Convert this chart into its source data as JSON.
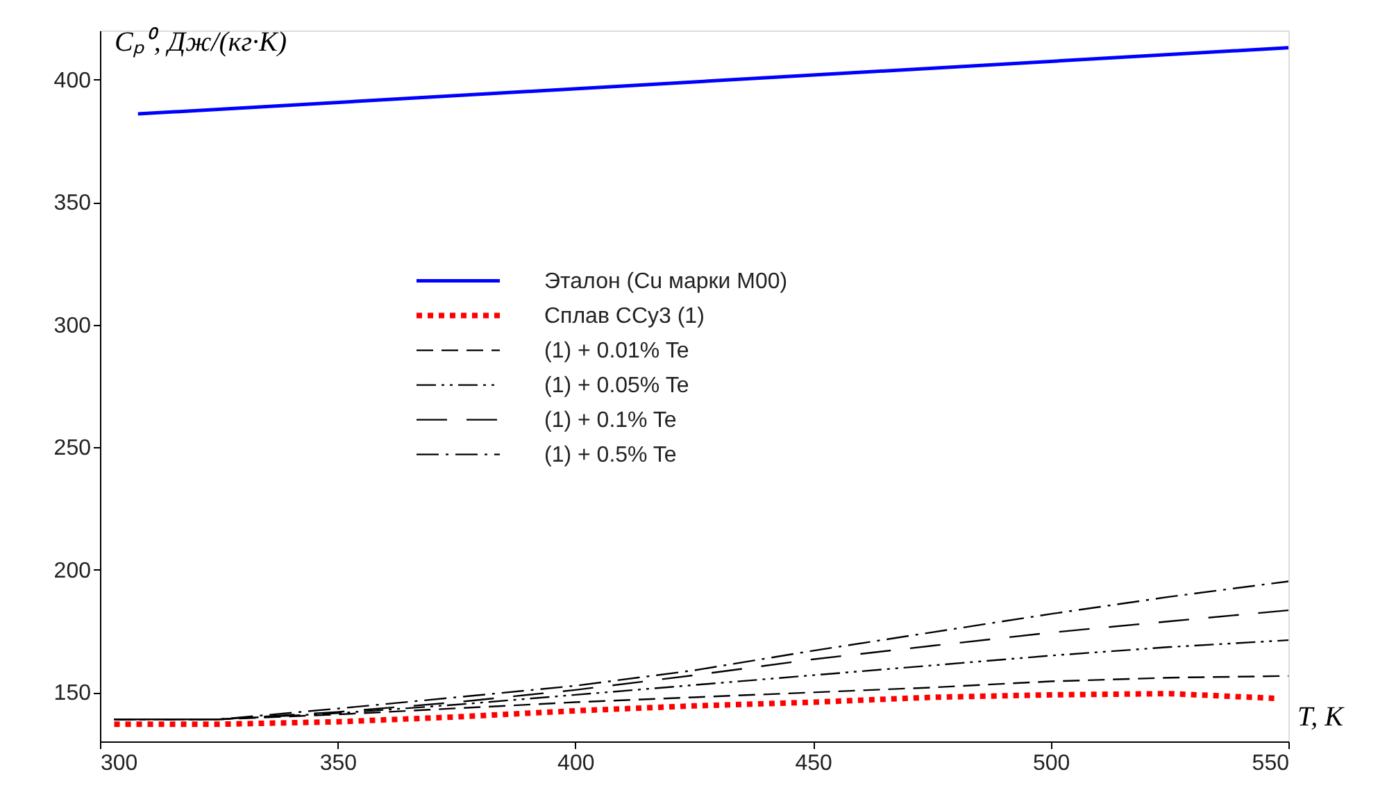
{
  "chart_data": {
    "type": "line",
    "xlabel": "T, K",
    "ylabel": "Cₚ⁰, Дж/(кг·К)",
    "xlim": [
      300,
      550
    ],
    "xticks": [
      300,
      350,
      400,
      450,
      500,
      550
    ],
    "ylim": [
      130,
      420
    ],
    "yticks": [
      150,
      200,
      250,
      300,
      350,
      400
    ],
    "grid": false,
    "legend": "top",
    "marker": "none",
    "series": [
      {
        "name": "Эталон (Cu марки М00)",
        "color": "#0000ff",
        "line_style": "solid",
        "x": [
          308,
          550
        ],
        "values": [
          386,
          413
        ]
      },
      {
        "name": "Сплав ССу3 (1)",
        "color": "#ff0000",
        "line_style": "dotted",
        "x": [
          303,
          325,
          350,
          375,
          400,
          425,
          450,
          475,
          500,
          525,
          548
        ],
        "values": [
          137,
          137,
          138,
          140,
          142.5,
          144.5,
          146,
          148,
          149,
          149.5,
          147.5
        ]
      },
      {
        "name": "(1) + 0.01% Te",
        "color": "#000000",
        "line_style": "dashed",
        "x": [
          303,
          325,
          350,
          375,
          400,
          425,
          450,
          475,
          500,
          525,
          550
        ],
        "values": [
          139,
          139,
          141,
          143.5,
          146,
          148,
          150,
          152,
          154.5,
          156,
          156.7
        ]
      },
      {
        "name": "(1) + 0.05% Te",
        "color": "#000000",
        "line_style": "dashdotdot",
        "x": [
          303,
          325,
          350,
          375,
          400,
          425,
          450,
          475,
          500,
          525,
          550
        ],
        "values": [
          139,
          139,
          141.5,
          145,
          149,
          153,
          157,
          161,
          165,
          168.5,
          171.3
        ]
      },
      {
        "name": "(1) + 0.1% Te",
        "color": "#000000",
        "line_style": "longdash",
        "x": [
          303,
          325,
          350,
          375,
          400,
          425,
          450,
          475,
          500,
          525,
          550
        ],
        "values": [
          139,
          139,
          142,
          146,
          151,
          157,
          163.5,
          169,
          174.4,
          179,
          183.5
        ]
      },
      {
        "name": "(1) + 0.5% Te",
        "color": "#000000",
        "line_style": "dashdot",
        "x": [
          303,
          325,
          350,
          375,
          400,
          425,
          450,
          475,
          500,
          525,
          550
        ],
        "values": [
          139,
          139,
          143.4,
          148,
          152.7,
          159,
          167,
          174.5,
          182,
          189,
          195.3
        ]
      }
    ]
  }
}
